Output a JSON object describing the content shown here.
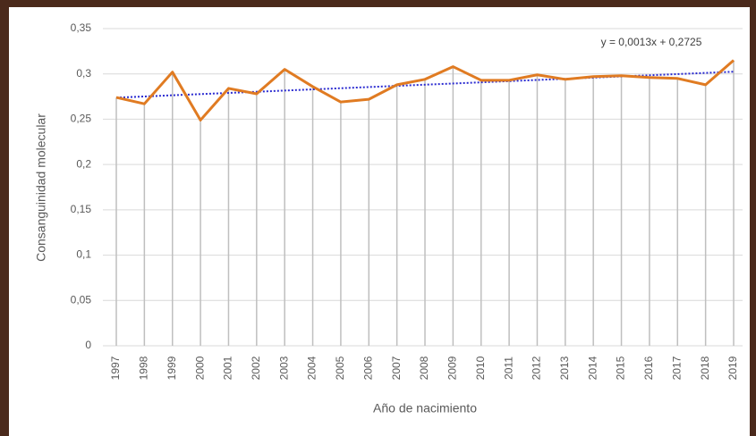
{
  "chart_data": {
    "type": "line",
    "x_label": "Año de nacimiento",
    "y_label": "Consanguinidad molecular",
    "categories": [
      "1997",
      "1998",
      "1999",
      "2000",
      "2001",
      "2002",
      "2003",
      "2004",
      "2005",
      "2006",
      "2007",
      "2008",
      "2009",
      "2010",
      "2011",
      "2012",
      "2013",
      "2014",
      "2015",
      "2016",
      "2017",
      "2018",
      "2019"
    ],
    "series": [
      {
        "name": "Consanguinidad molecular",
        "color": "#e07b22",
        "values": [
          0.274,
          0.267,
          0.302,
          0.249,
          0.284,
          0.278,
          0.305,
          0.286,
          0.269,
          0.272,
          0.288,
          0.294,
          0.308,
          0.293,
          0.293,
          0.299,
          0.294,
          0.297,
          0.298,
          0.296,
          0.295,
          0.288,
          0.315
        ]
      }
    ],
    "trendline": {
      "label": "y = 0,0013x + 0,2725",
      "slope": 0.0013,
      "intercept": 0.2725,
      "color": "#2a2ad0"
    },
    "ylim": [
      0,
      0.35
    ],
    "yticks": [
      0,
      {
        "value": 0.05,
        "label": "0,05"
      },
      {
        "value": 0.1,
        "label": "0,1"
      },
      {
        "value": 0.15,
        "label": "0,15"
      },
      {
        "value": 0.2,
        "label": "0,2"
      },
      {
        "value": 0.25,
        "label": "0,25"
      },
      {
        "value": 0.3,
        "label": "0,3"
      },
      {
        "value": 0.35,
        "label": "0,35"
      }
    ],
    "grid": true,
    "drop_lines": true
  }
}
